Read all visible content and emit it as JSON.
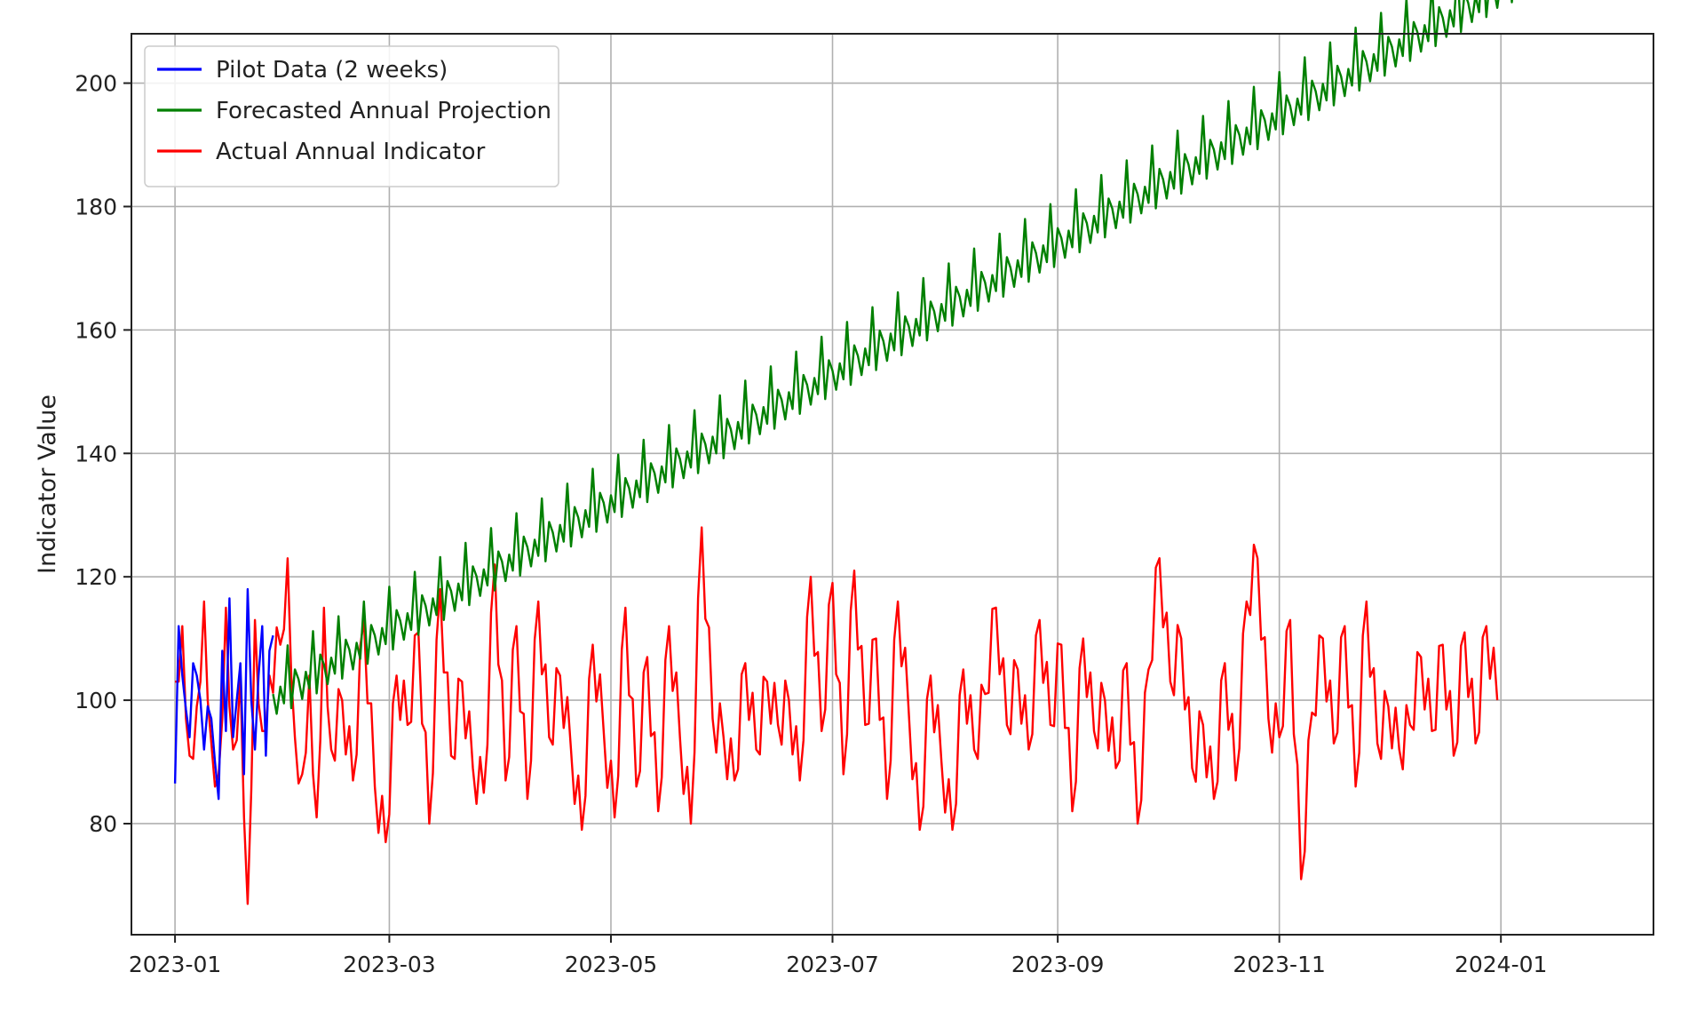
{
  "chart_data": {
    "type": "line",
    "title": "",
    "xlabel": "",
    "ylabel": "Indicator Value",
    "x_axis_type": "date",
    "xlim": [
      "2022-12-20",
      "2024-02-12"
    ],
    "ylim": [
      62,
      208
    ],
    "x_ticks": [
      "2023-01-01",
      "2023-03-01",
      "2023-05-01",
      "2023-07-01",
      "2023-09-01",
      "2023-11-01",
      "2024-01-01"
    ],
    "x_tick_labels": [
      "2023-01",
      "2023-03",
      "2023-05",
      "2023-07",
      "2023-09",
      "2023-11",
      "2024-01"
    ],
    "y_ticks": [
      80,
      100,
      120,
      140,
      160,
      180,
      200
    ],
    "y_tick_labels": [
      "80",
      "100",
      "120",
      "140",
      "160",
      "180",
      "200"
    ],
    "grid": true,
    "legend_position": "top-left",
    "series": [
      {
        "name": "Pilot Data (2 weeks)",
        "color": "#0000ff",
        "x": [
          "2023-01-01",
          "2023-01-02",
          "2023-01-03",
          "2023-01-04",
          "2023-01-05",
          "2023-01-06",
          "2023-01-07",
          "2023-01-08",
          "2023-01-09",
          "2023-01-10",
          "2023-01-11",
          "2023-01-12",
          "2023-01-13",
          "2023-01-14",
          "2023-01-15",
          "2023-01-16",
          "2023-01-17",
          "2023-01-18",
          "2023-01-19",
          "2023-01-20",
          "2023-01-21",
          "2023-01-22",
          "2023-01-23",
          "2023-01-24",
          "2023-01-25",
          "2023-01-26",
          "2023-01-27",
          "2023-01-28"
        ],
        "y": [
          86.5,
          112,
          104,
          98.5,
          94,
          106,
          104,
          100,
          92,
          99,
          97,
          90,
          84,
          108,
          95,
          116.5,
          94,
          100,
          106,
          88,
          118,
          100,
          92,
          104,
          112,
          91,
          108,
          110.5
        ]
      },
      {
        "name": "Forecasted Annual Projection",
        "color": "#008000",
        "x_start": "2023-01-28",
        "x_step_days": 1,
        "trend_start": 101,
        "trend_slope_per_day": 0.3405,
        "weekly_pattern": [
          0,
          -3.5,
          0.5,
          -2.5,
          6.5,
          -4,
          2
        ],
        "y": []
      },
      {
        "name": "Actual Annual Indicator",
        "color": "#ff0000",
        "x_start": "2023-01-01",
        "x_step_days": 1,
        "y": []
      }
    ],
    "actual_samples": [
      [
        "2023-01-01",
        103
      ],
      [
        "2023-01-03",
        112
      ],
      [
        "2023-01-05",
        91
      ],
      [
        "2023-01-07",
        99
      ],
      [
        "2023-01-09",
        116
      ],
      [
        "2023-01-11",
        93
      ],
      [
        "2023-01-13",
        88
      ],
      [
        "2023-01-15",
        115
      ],
      [
        "2023-01-17",
        92
      ],
      [
        "2023-01-19",
        104
      ],
      [
        "2023-01-21",
        67
      ],
      [
        "2023-01-23",
        113
      ],
      [
        "2023-01-25",
        95
      ],
      [
        "2023-01-27",
        104
      ],
      [
        "2023-01-30",
        109
      ],
      [
        "2023-02-01",
        123
      ],
      [
        "2023-02-03",
        94
      ],
      [
        "2023-02-05",
        88
      ],
      [
        "2023-02-07",
        104
      ],
      [
        "2023-02-09",
        81
      ],
      [
        "2023-02-11",
        115
      ],
      [
        "2023-02-13",
        92
      ],
      [
        "2023-02-16",
        100
      ],
      [
        "2023-02-19",
        87
      ],
      [
        "2023-02-22",
        113
      ],
      [
        "2023-02-25",
        86
      ],
      [
        "2023-02-28",
        77
      ],
      [
        "2023-03-03",
        104
      ],
      [
        "2023-03-06",
        96
      ],
      [
        "2023-03-09",
        111
      ],
      [
        "2023-03-12",
        80
      ],
      [
        "2023-03-15",
        118
      ],
      [
        "2023-03-18",
        91
      ],
      [
        "2023-03-21",
        103
      ],
      [
        "2023-03-24",
        89
      ],
      [
        "2023-03-27",
        85
      ],
      [
        "2023-03-30",
        122
      ],
      [
        "2023-04-02",
        87
      ],
      [
        "2023-04-05",
        112
      ],
      [
        "2023-04-08",
        84
      ],
      [
        "2023-04-11",
        116
      ],
      [
        "2023-04-14",
        94
      ],
      [
        "2023-04-17",
        104
      ],
      [
        "2023-04-20",
        92
      ],
      [
        "2023-04-23",
        79
      ],
      [
        "2023-04-26",
        109
      ],
      [
        "2023-04-29",
        95
      ],
      [
        "2023-05-02",
        81
      ],
      [
        "2023-05-05",
        115
      ],
      [
        "2023-05-08",
        86
      ],
      [
        "2023-05-11",
        107
      ],
      [
        "2023-05-14",
        82
      ],
      [
        "2023-05-17",
        112
      ],
      [
        "2023-05-20",
        94
      ],
      [
        "2023-05-23",
        80
      ],
      [
        "2023-05-26",
        128
      ],
      [
        "2023-05-29",
        97
      ],
      [
        "2023-06-01",
        94
      ],
      [
        "2023-06-04",
        87
      ],
      [
        "2023-06-07",
        106
      ],
      [
        "2023-06-10",
        92
      ],
      [
        "2023-06-13",
        103
      ],
      [
        "2023-06-16",
        96
      ],
      [
        "2023-06-19",
        100
      ],
      [
        "2023-06-22",
        87
      ],
      [
        "2023-06-25",
        120
      ],
      [
        "2023-06-28",
        95
      ],
      [
        "2023-07-01",
        119
      ],
      [
        "2023-07-04",
        88
      ],
      [
        "2023-07-07",
        121
      ],
      [
        "2023-07-10",
        96
      ],
      [
        "2023-07-13",
        110
      ],
      [
        "2023-07-16",
        84
      ],
      [
        "2023-07-19",
        116
      ],
      [
        "2023-07-22",
        98
      ],
      [
        "2023-07-25",
        79
      ],
      [
        "2023-07-28",
        104
      ],
      [
        "2023-07-31",
        90
      ],
      [
        "2023-08-03",
        79
      ],
      [
        "2023-08-06",
        105
      ],
      [
        "2023-08-09",
        92
      ],
      [
        "2023-08-12",
        101
      ],
      [
        "2023-08-15",
        115
      ],
      [
        "2023-08-18",
        96
      ],
      [
        "2023-08-21",
        105
      ],
      [
        "2023-08-24",
        92
      ],
      [
        "2023-08-27",
        113
      ],
      [
        "2023-08-30",
        96
      ],
      [
        "2023-09-02",
        109
      ],
      [
        "2023-09-05",
        82
      ],
      [
        "2023-09-08",
        110
      ],
      [
        "2023-09-11",
        95
      ],
      [
        "2023-09-14",
        100
      ],
      [
        "2023-09-17",
        89
      ],
      [
        "2023-09-20",
        106
      ],
      [
        "2023-09-23",
        80
      ],
      [
        "2023-09-26",
        105
      ],
      [
        "2023-09-29",
        123
      ],
      [
        "2023-10-02",
        103
      ],
      [
        "2023-10-05",
        110
      ],
      [
        "2023-10-08",
        89
      ],
      [
        "2023-10-11",
        96
      ],
      [
        "2023-10-14",
        84
      ],
      [
        "2023-10-17",
        106
      ],
      [
        "2023-10-20",
        87
      ],
      [
        "2023-10-23",
        116
      ],
      [
        "2023-10-26",
        123
      ],
      [
        "2023-10-29",
        97
      ],
      [
        "2023-11-01",
        94
      ],
      [
        "2023-11-04",
        113
      ],
      [
        "2023-11-07",
        71
      ],
      [
        "2023-11-10",
        98
      ],
      [
        "2023-11-13",
        110
      ],
      [
        "2023-11-16",
        93
      ],
      [
        "2023-11-19",
        112
      ],
      [
        "2023-11-22",
        86
      ],
      [
        "2023-11-25",
        116
      ],
      [
        "2023-11-28",
        93
      ],
      [
        "2023-12-01",
        99
      ],
      [
        "2023-12-04",
        92
      ],
      [
        "2023-12-07",
        96
      ],
      [
        "2023-12-10",
        107
      ],
      [
        "2023-12-13",
        95
      ],
      [
        "2023-12-16",
        109
      ],
      [
        "2023-12-19",
        91
      ],
      [
        "2023-12-22",
        111
      ],
      [
        "2023-12-25",
        93
      ],
      [
        "2023-12-28",
        112
      ],
      [
        "2023-12-31",
        100
      ]
    ]
  }
}
